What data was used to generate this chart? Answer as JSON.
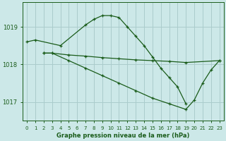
{
  "title": "Graphe pression niveau de la mer (hPa)",
  "bg_color": "#cce8e8",
  "grid_color": "#aacccc",
  "line_color": "#1a5c1a",
  "xlim_min": -0.5,
  "xlim_max": 23.5,
  "ylim_min": 1016.5,
  "ylim_max": 1019.65,
  "yticks": [
    1017,
    1018,
    1019
  ],
  "series": [
    {
      "comment": "arch curve: 0->1018.6, 1->1018.65, 4->1018.5, 7->1019.05, 8->1019.2, 9->1019.3, 10->1019.3, 11->1019.25, 12->1019.0, 13->1018.75, 14->1018.5, 15->1018.2, 16->1017.9, 17->1017.65, 18->1017.4, 19->1016.95",
      "x": [
        0,
        1,
        4,
        7,
        8,
        9,
        10,
        11,
        12,
        13,
        14,
        15,
        16,
        17,
        18,
        19
      ],
      "y": [
        1018.6,
        1018.65,
        1018.5,
        1019.05,
        1019.2,
        1019.3,
        1019.3,
        1019.25,
        1019.0,
        1018.75,
        1018.5,
        1018.2,
        1017.9,
        1017.65,
        1017.4,
        1016.95
      ]
    },
    {
      "comment": "flat line: 2->1018.3, 3->1018.3, stays ~1018.15 descending slightly to x=19, ends at 23->1018.1",
      "x": [
        2,
        3,
        5,
        7,
        9,
        11,
        13,
        15,
        17,
        19,
        23
      ],
      "y": [
        1018.3,
        1018.3,
        1018.25,
        1018.22,
        1018.18,
        1018.15,
        1018.12,
        1018.1,
        1018.08,
        1018.05,
        1018.1
      ]
    },
    {
      "comment": "steep diagonal: 2->1018.3, 3->1018.3, descends to x=19->1016.8, then 20->1017.0, 21->1017.5, 22->1017.85, 23->1018.1",
      "x": [
        2,
        3,
        5,
        7,
        9,
        11,
        13,
        15,
        17,
        19,
        20,
        21,
        22,
        23
      ],
      "y": [
        1018.3,
        1018.3,
        1018.1,
        1017.9,
        1017.7,
        1017.5,
        1017.3,
        1017.1,
        1016.95,
        1016.8,
        1017.05,
        1017.5,
        1017.85,
        1018.1
      ]
    }
  ]
}
